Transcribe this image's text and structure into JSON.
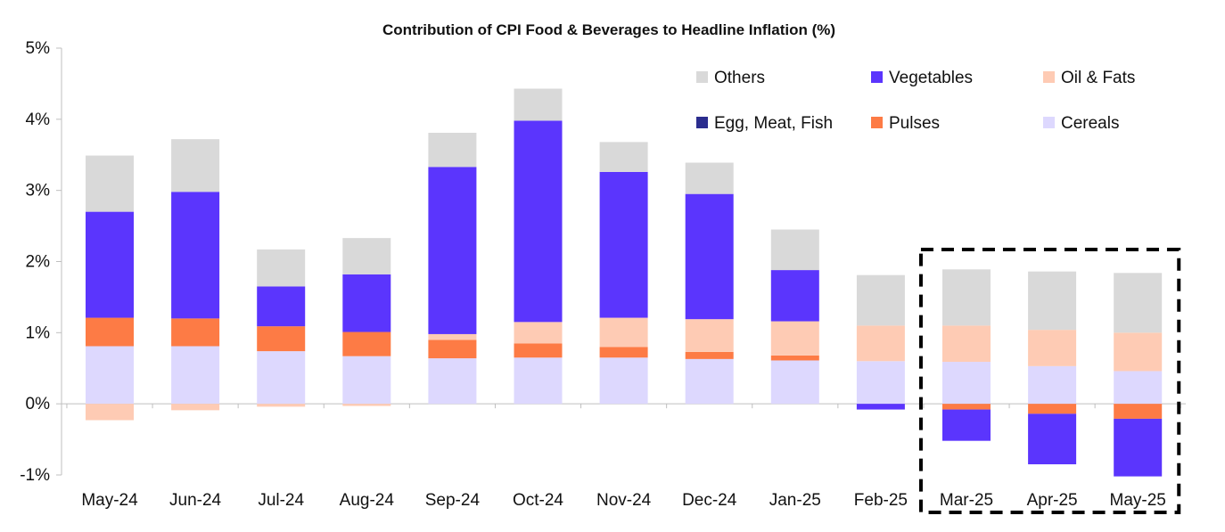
{
  "chart_data": {
    "type": "bar",
    "stacked": true,
    "title": "Contribution of CPI Food & Beverages to Headline Inflation (%)",
    "xlabel": "",
    "ylabel": "",
    "ylim": [
      -1,
      5
    ],
    "yticks": [
      -1,
      0,
      1,
      2,
      3,
      4,
      5
    ],
    "ytick_labels": [
      "-1%",
      "0%",
      "1%",
      "2%",
      "3%",
      "4%",
      "5%"
    ],
    "grid": false,
    "legend_position": "top-right",
    "categories": [
      "May-24",
      "Jun-24",
      "Jul-24",
      "Aug-24",
      "Sep-24",
      "Oct-24",
      "Nov-24",
      "Dec-24",
      "Jan-25",
      "Feb-25",
      "Mar-25",
      "Apr-25",
      "May-25"
    ],
    "highlight": {
      "style": "dashed-box",
      "categories": [
        "Mar-25",
        "Apr-25",
        "May-25"
      ]
    },
    "series": [
      {
        "name": "Cereals",
        "color": "#ddd8fe",
        "values": [
          0.81,
          0.81,
          0.74,
          0.67,
          0.64,
          0.65,
          0.65,
          0.63,
          0.61,
          0.6,
          0.59,
          0.53,
          0.46
        ]
      },
      {
        "name": "Pulses",
        "color": "#fd7b45",
        "values": [
          0.4,
          0.39,
          0.35,
          0.34,
          0.26,
          0.2,
          0.15,
          0.1,
          0.07,
          0.0,
          -0.08,
          -0.14,
          -0.21
        ]
      },
      {
        "name": "Egg, Meat, Fish",
        "color": "#2b2d8e",
        "values": [
          0,
          0,
          0,
          0,
          0,
          0,
          0,
          0,
          0,
          0,
          0,
          0,
          0
        ]
      },
      {
        "name": "Oil & Fats",
        "color": "#fecbb4",
        "values": [
          -0.23,
          -0.09,
          -0.04,
          -0.03,
          0.08,
          0.3,
          0.41,
          0.46,
          0.48,
          0.5,
          0.51,
          0.51,
          0.54
        ]
      },
      {
        "name": "Vegetables",
        "color": "#5b35fd",
        "values": [
          1.49,
          1.78,
          0.56,
          0.81,
          2.35,
          2.83,
          2.05,
          1.76,
          0.72,
          -0.08,
          -0.44,
          -0.71,
          -0.81
        ]
      },
      {
        "name": "Others",
        "color": "#d9d9d9",
        "values": [
          0.79,
          0.74,
          0.52,
          0.51,
          0.48,
          0.45,
          0.42,
          0.44,
          0.57,
          0.71,
          0.79,
          0.82,
          0.84
        ]
      }
    ],
    "legend_order": [
      "Others",
      "Vegetables",
      "Oil & Fats",
      "Egg, Meat, Fish",
      "Pulses",
      "Cereals"
    ]
  }
}
